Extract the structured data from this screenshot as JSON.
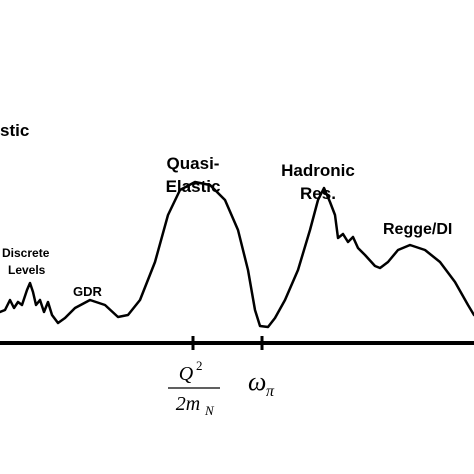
{
  "regions": [
    {
      "lines": [
        "stic"
      ]
    },
    {
      "lines": [
        "Quasi-",
        "Elastic"
      ]
    },
    {
      "lines": [
        "Hadronic",
        "Res."
      ]
    },
    {
      "lines": [
        "Regge/DI"
      ]
    },
    {
      "lines": [
        "Discrete",
        "Levels"
      ]
    },
    {
      "lines": [
        "GDR"
      ]
    }
  ],
  "axis_marks": [
    {
      "numerator": "Q",
      "numerator_sup": "2",
      "denominator": "2m",
      "denominator_sub": "N"
    },
    {
      "symbol": "ω",
      "sub": "π"
    }
  ]
}
